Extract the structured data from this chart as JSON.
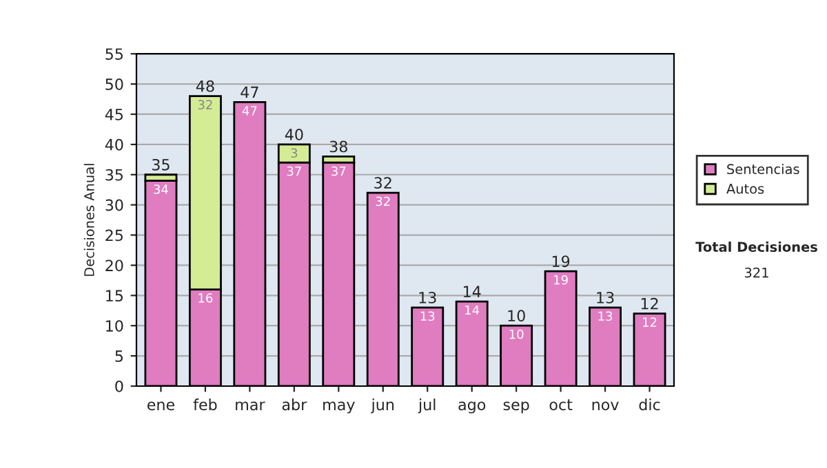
{
  "chart_data": {
    "type": "bar",
    "stacked": true,
    "ylabel": "Decisiones Anual",
    "categories": [
      "ene",
      "feb",
      "mar",
      "abr",
      "may",
      "jun",
      "jul",
      "ago",
      "sep",
      "oct",
      "nov",
      "dic"
    ],
    "series": [
      {
        "name": "Sentencias",
        "color": "#e07cc0",
        "values": [
          34,
          16,
          47,
          37,
          37,
          32,
          13,
          14,
          10,
          19,
          13,
          12
        ],
        "value_labels": [
          "34",
          "16",
          "47",
          "37",
          "37",
          "32",
          "13",
          "14",
          "10",
          "19",
          "13",
          "12"
        ]
      },
      {
        "name": "Autos",
        "color": "#d4ec94",
        "values": [
          1,
          32,
          null,
          3,
          1,
          null,
          null,
          null,
          null,
          null,
          null,
          null
        ],
        "value_labels": [
          null,
          "32",
          null,
          "3",
          null,
          null,
          null,
          null,
          null,
          null,
          null,
          null
        ]
      }
    ],
    "totals": [
      "35",
      "48",
      "47",
      "40",
      "38",
      "32",
      "13",
      "14",
      "10",
      "19",
      "13",
      "12"
    ],
    "ylim": [
      0,
      55
    ],
    "yticks": [
      0,
      5,
      10,
      15,
      20,
      25,
      30,
      35,
      40,
      45,
      50,
      55
    ],
    "grid": "y",
    "legend": "right",
    "annotations": [
      "Total Decisiones",
      "321"
    ]
  }
}
